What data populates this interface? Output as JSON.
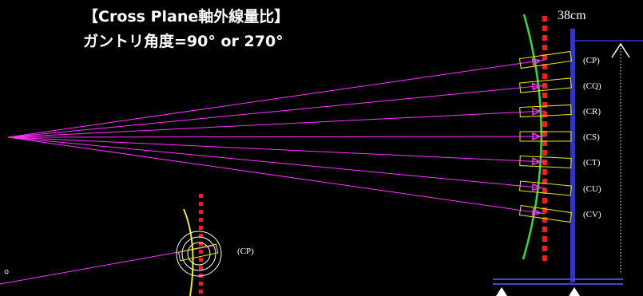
{
  "title": {
    "line1": "【Cross Plane軸外線量比】",
    "line2": "ガントリ角度=90° or 270°"
  },
  "distance_label": "38cm",
  "chamber_labels": [
    "(CP)",
    "(CQ)",
    "(CR)",
    "(CS)",
    "(CT)",
    "(CU)",
    "(CV)"
  ],
  "inset_label": "(CP)",
  "source_marker": "。",
  "colors": {
    "beam": "#ff33ff",
    "arc": "#33dd33",
    "chamber": "#eeee00",
    "axis_dots": "#ff1a1a",
    "phantom": "#3333cc",
    "support": "#2a2aaa",
    "text": "#ffffff"
  }
}
